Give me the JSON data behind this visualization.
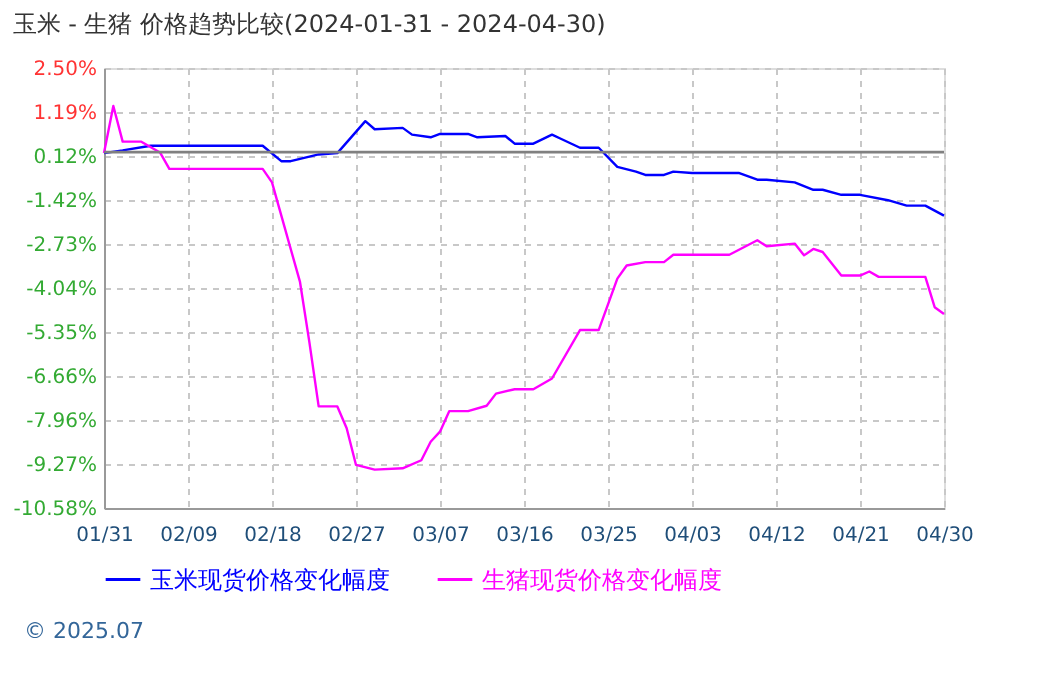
{
  "chart_data": {
    "type": "line",
    "title": "玉米 - 生猪 价格趋势比较(2024-01-31 - 2024-04-30)",
    "xlim": [
      "2024-01-31",
      "2024-04-30"
    ],
    "xticks": [
      {
        "value": "2024-01-31",
        "label": "01/31"
      },
      {
        "value": "2024-02-09",
        "label": "02/09"
      },
      {
        "value": "2024-02-18",
        "label": "02/18"
      },
      {
        "value": "2024-02-27",
        "label": "02/27"
      },
      {
        "value": "2024-03-07",
        "label": "03/07"
      },
      {
        "value": "2024-03-16",
        "label": "03/16"
      },
      {
        "value": "2024-03-25",
        "label": "03/25"
      },
      {
        "value": "2024-04-03",
        "label": "04/03"
      },
      {
        "value": "2024-04-12",
        "label": "04/12"
      },
      {
        "value": "2024-04-21",
        "label": "04/21"
      },
      {
        "value": "2024-04-30",
        "label": "04/30"
      }
    ],
    "ylim": [
      -10.58,
      2.5
    ],
    "yticks": [
      {
        "value": 2.5,
        "label": "2.50%"
      },
      {
        "value": 1.19,
        "label": "1.19%"
      },
      {
        "value": -0.12,
        "label": "0.12%"
      },
      {
        "value": -1.42,
        "label": "-1.42%"
      },
      {
        "value": -2.73,
        "label": "-2.73%"
      },
      {
        "value": -4.04,
        "label": "-4.04%"
      },
      {
        "value": -5.35,
        "label": "-5.35%"
      },
      {
        "value": -6.66,
        "label": "-6.66%"
      },
      {
        "value": -7.96,
        "label": "-7.96%"
      },
      {
        "value": -9.27,
        "label": "-9.27%"
      },
      {
        "value": -10.58,
        "label": "-10.58%"
      }
    ],
    "grid": true,
    "legend": "bottom",
    "marker": "none",
    "line_style": "solid",
    "ref_lines": [
      {
        "axis": "y",
        "value": 0,
        "color": "#808080"
      }
    ],
    "annotations": [
      "© 2025.07"
    ],
    "series": [
      {
        "name": "玉米现货价格变化幅度",
        "color": "#0000ff",
        "x": [
          "2024-01-31",
          "2024-02-02",
          "2024-02-05",
          "2024-02-17",
          "2024-02-19",
          "2024-02-20",
          "2024-02-23",
          "2024-02-25",
          "2024-02-28",
          "2024-02-29",
          "2024-03-03",
          "2024-03-04",
          "2024-03-06",
          "2024-03-07",
          "2024-03-10",
          "2024-03-11",
          "2024-03-14",
          "2024-03-15",
          "2024-03-17",
          "2024-03-19",
          "2024-03-20",
          "2024-03-22",
          "2024-03-24",
          "2024-03-26",
          "2024-03-28",
          "2024-03-29",
          "2024-03-31",
          "2024-04-01",
          "2024-04-03",
          "2024-04-08",
          "2024-04-10",
          "2024-04-11",
          "2024-04-14",
          "2024-04-16",
          "2024-04-17",
          "2024-04-19",
          "2024-04-21",
          "2024-04-24",
          "2024-04-26",
          "2024-04-28",
          "2024-04-30"
        ],
        "values": [
          -0.03,
          0.05,
          0.19,
          0.19,
          -0.27,
          -0.27,
          -0.07,
          -0.03,
          0.92,
          0.68,
          0.72,
          0.52,
          0.44,
          0.54,
          0.54,
          0.44,
          0.48,
          0.25,
          0.25,
          0.52,
          0.39,
          0.13,
          0.13,
          -0.44,
          -0.58,
          -0.68,
          -0.68,
          -0.58,
          -0.62,
          -0.62,
          -0.82,
          -0.82,
          -0.9,
          -1.12,
          -1.12,
          -1.27,
          -1.27,
          -1.43,
          -1.59,
          -1.59,
          -1.89
        ]
      },
      {
        "name": "生猪现货价格变化幅度",
        "color": "#ff00ff",
        "x": [
          "2024-01-31",
          "2024-02-01",
          "2024-02-02",
          "2024-02-04",
          "2024-02-06",
          "2024-02-07",
          "2024-02-17",
          "2024-02-18",
          "2024-02-19",
          "2024-02-21",
          "2024-02-22",
          "2024-02-23",
          "2024-02-25",
          "2024-02-26",
          "2024-02-27",
          "2024-02-29",
          "2024-03-03",
          "2024-03-05",
          "2024-03-06",
          "2024-03-07",
          "2024-03-08",
          "2024-03-10",
          "2024-03-12",
          "2024-03-13",
          "2024-03-15",
          "2024-03-17",
          "2024-03-19",
          "2024-03-22",
          "2024-03-24",
          "2024-03-26",
          "2024-03-27",
          "2024-03-29",
          "2024-03-31",
          "2024-04-01",
          "2024-04-07",
          "2024-04-10",
          "2024-04-11",
          "2024-04-14",
          "2024-04-15",
          "2024-04-16",
          "2024-04-17",
          "2024-04-19",
          "2024-04-21",
          "2024-04-22",
          "2024-04-23",
          "2024-04-28",
          "2024-04-29",
          "2024-04-30"
        ],
        "values": [
          -0.03,
          1.37,
          0.31,
          0.31,
          -0.01,
          -0.5,
          -0.5,
          -0.9,
          -1.89,
          -3.86,
          -5.64,
          -7.56,
          -7.56,
          -8.21,
          -9.3,
          -9.44,
          -9.4,
          -9.16,
          -8.61,
          -8.31,
          -7.7,
          -7.7,
          -7.54,
          -7.18,
          -7.05,
          -7.05,
          -6.73,
          -5.29,
          -5.29,
          -3.76,
          -3.37,
          -3.27,
          -3.27,
          -3.05,
          -3.05,
          -2.62,
          -2.8,
          -2.72,
          -3.07,
          -2.88,
          -2.97,
          -3.67,
          -3.67,
          -3.55,
          -3.71,
          -3.71,
          -4.61,
          -4.81
        ]
      }
    ]
  }
}
